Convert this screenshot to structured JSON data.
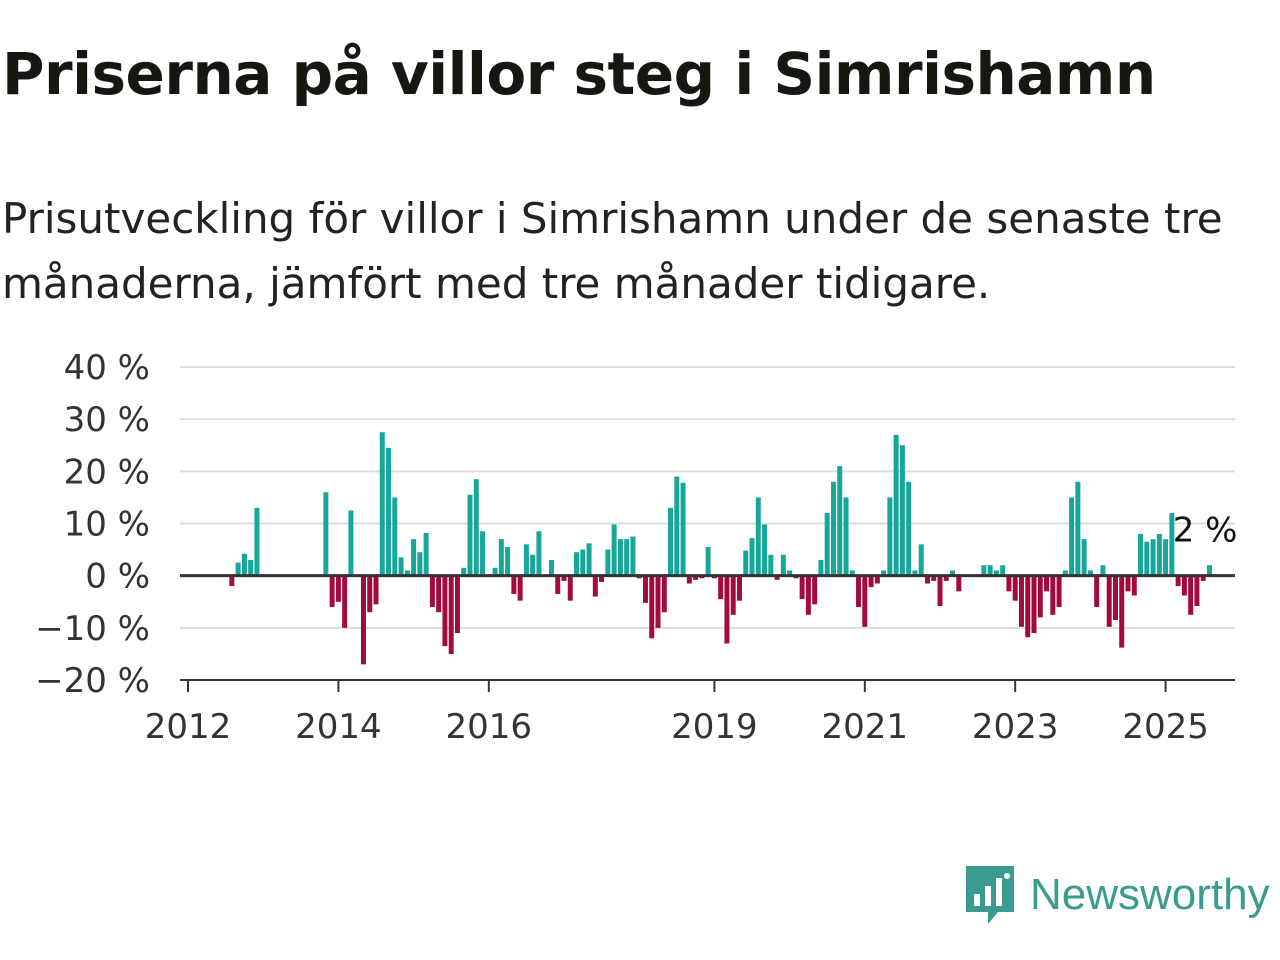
{
  "title": "Priserna på villor steg i Simrishamn",
  "subtitle": "Prisutveckling för villor i Simrishamn under de senaste tre månaderna, jämfört med tre månader tidigare.",
  "brand": {
    "name": "Newsworthy",
    "color": "#3a9b91",
    "icon": "newsworthy-logo-icon"
  },
  "colors": {
    "positive": "#16a69a",
    "negative": "#a30a3d",
    "grid": "#dddddd",
    "zero": "#333333"
  },
  "chart_data": {
    "type": "bar",
    "ylim": [
      -20,
      40
    ],
    "yticks": [
      40,
      30,
      20,
      10,
      0,
      -10,
      -20
    ],
    "ytick_labels": [
      "40 %",
      "30 %",
      "20 %",
      "10 %",
      "0 %",
      "−10 %",
      "−20 %"
    ],
    "xtick_years": [
      2012,
      2014,
      2016,
      2019,
      2021,
      2023,
      2025
    ],
    "xtick_labels": [
      "2012",
      "2014",
      "2016",
      "2019",
      "2021",
      "2023",
      "2025"
    ],
    "x_start": 2012,
    "annotation": {
      "label": "2 %",
      "value": 2
    },
    "values": [
      null,
      null,
      null,
      null,
      null,
      null,
      null,
      -2,
      2.5,
      4.2,
      3,
      13,
      null,
      null,
      null,
      null,
      null,
      null,
      null,
      null,
      null,
      null,
      16,
      -6,
      -5,
      -10,
      12.5,
      null,
      -17,
      -7,
      -5.5,
      27.5,
      24.5,
      15,
      3.5,
      1,
      7,
      4.5,
      8.2,
      -6,
      -7,
      -13.5,
      -15,
      -11,
      1.5,
      15.5,
      18.5,
      8.5,
      null,
      1.5,
      7,
      5.5,
      -3.5,
      -4.8,
      6,
      4,
      8.5,
      null,
      3,
      -3.5,
      -1,
      -4.8,
      4.5,
      5,
      6.2,
      -4,
      -1.2,
      5,
      9.8,
      7,
      7,
      7.5,
      -0.5,
      -5.2,
      -12,
      -10,
      -7,
      13,
      19,
      17.8,
      -1.5,
      -0.8,
      -0.5,
      5.5,
      -0.5,
      -4.5,
      -13,
      -7.5,
      -4.8,
      4.8,
      7.2,
      15,
      9.8,
      4,
      -0.8,
      4,
      1,
      -0.5,
      -4.5,
      -7.5,
      -5.5,
      3,
      12,
      18,
      21,
      15,
      1,
      -6,
      -9.8,
      -2.2,
      -1.5,
      1,
      15,
      27,
      25,
      18,
      1,
      6,
      -1.5,
      -1,
      -5.8,
      -1,
      1,
      -3,
      null,
      null,
      null,
      2,
      2,
      1,
      2,
      -3,
      -4.8,
      -9.8,
      -11.8,
      -11,
      -8,
      -3,
      -7.5,
      -6,
      1,
      15,
      18,
      7,
      1,
      -6,
      2,
      -9.8,
      -8.5,
      -13.8,
      -3,
      -3.8,
      8,
      6.5,
      7,
      8,
      7,
      12,
      -2,
      -3.8,
      -7.5,
      -5.8,
      -1,
      2
    ]
  }
}
